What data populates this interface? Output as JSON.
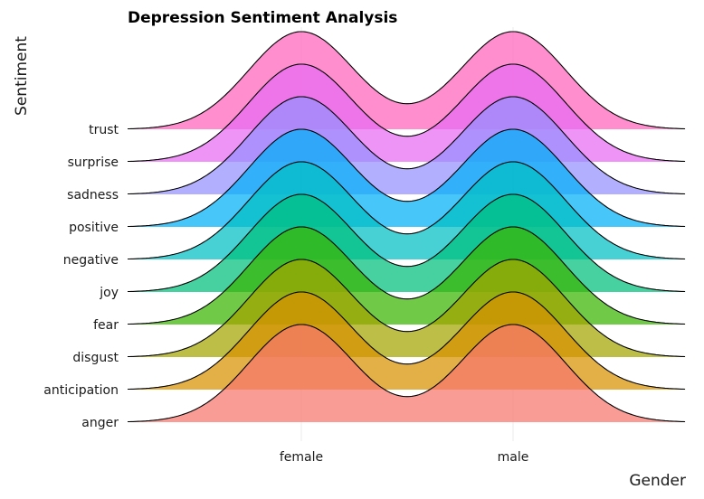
{
  "chart_data": {
    "type": "ridgeline",
    "title": "Depression Sentiment Analysis",
    "xlabel": "Gender",
    "ylabel": "Sentiment",
    "categories": [
      "female",
      "male"
    ],
    "series": [
      {
        "name": "anger",
        "color": "#F8766D"
      },
      {
        "name": "anticipation",
        "color": "#D89000"
      },
      {
        "name": "disgust",
        "color": "#A3A500"
      },
      {
        "name": "fear",
        "color": "#39B600"
      },
      {
        "name": "joy",
        "color": "#00BF7D"
      },
      {
        "name": "negative",
        "color": "#00BFC4"
      },
      {
        "name": "positive",
        "color": "#00B0F6"
      },
      {
        "name": "sadness",
        "color": "#9590FF"
      },
      {
        "name": "surprise",
        "color": "#E76BF3"
      },
      {
        "name": "trust",
        "color": "#FF62BC"
      }
    ],
    "grid": true,
    "legend": "none"
  }
}
